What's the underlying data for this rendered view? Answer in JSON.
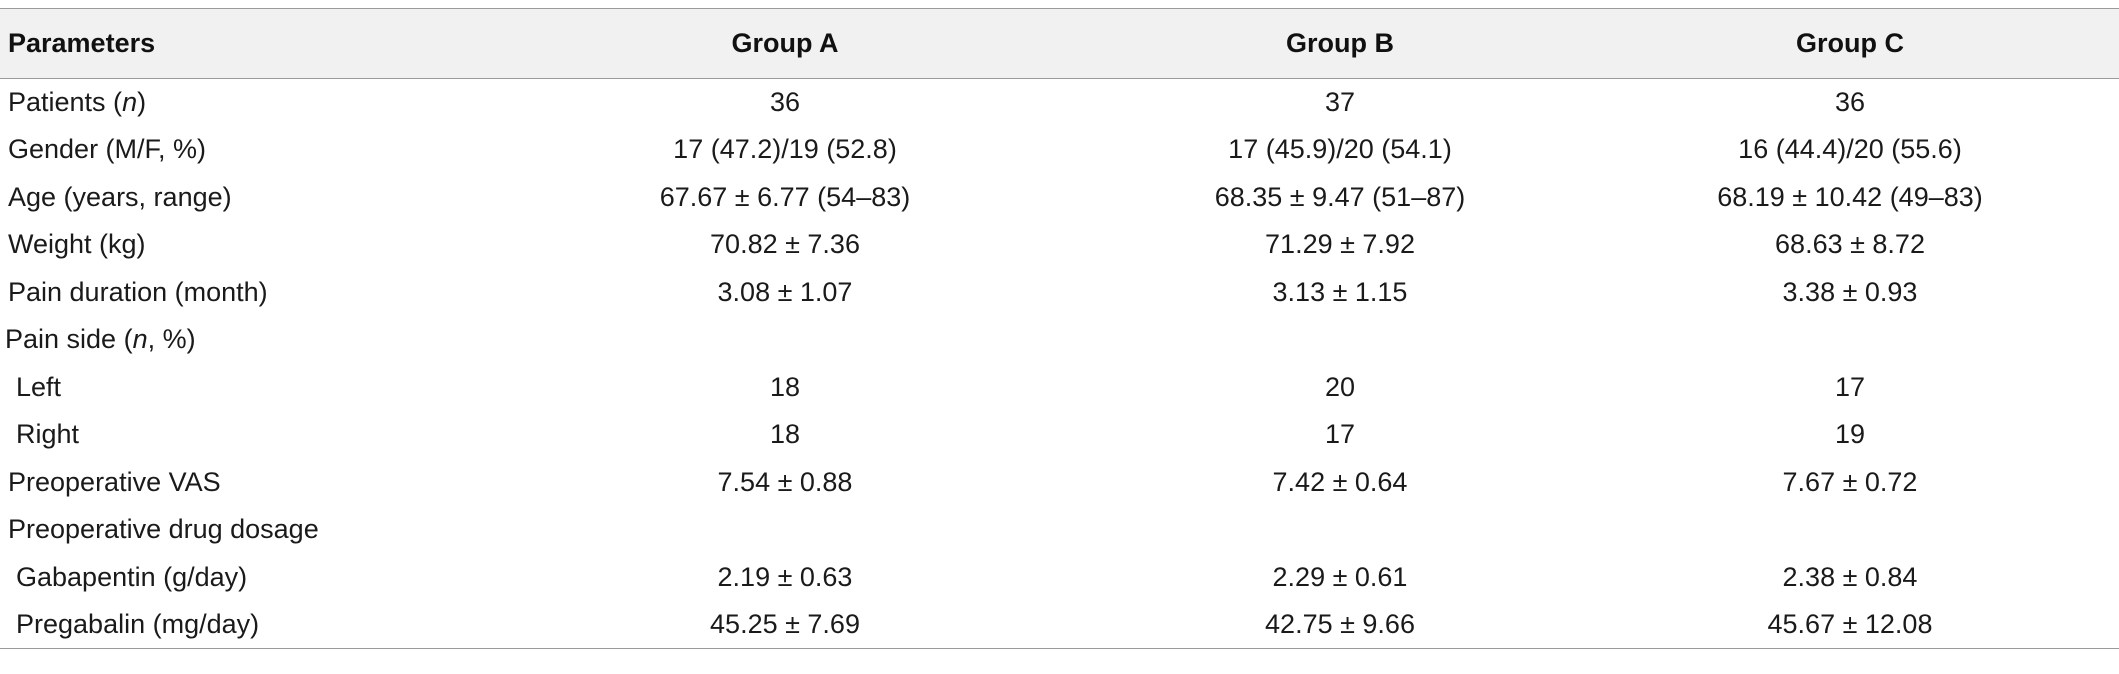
{
  "table": {
    "headers": [
      "Parameters",
      "Group A",
      "Group B",
      "Group C"
    ],
    "rows": [
      {
        "label": "Patients (",
        "label_em": "n",
        "label_tail": ")",
        "a": "36",
        "b": "37",
        "c": "36",
        "indent": "lbl"
      },
      {
        "label": "Gender (M/F, %)",
        "a": "17 (47.2)/19 (52.8)",
        "b": "17 (45.9)/20 (54.1)",
        "c": "16 (44.4)/20 (55.6)",
        "indent": "lbl"
      },
      {
        "label": "Age (years, range)",
        "a": "67.67 ± 6.77 (54–83)",
        "b": "68.35 ± 9.47 (51–87)",
        "c": "68.19 ± 10.42 (49–83)",
        "indent": "lbl"
      },
      {
        "label": "Weight (kg)",
        "a": "70.82 ± 7.36",
        "b": "71.29 ± 7.92",
        "c": "68.63 ± 8.72",
        "indent": "lbl"
      },
      {
        "label": "Pain duration (month)",
        "a": "3.08 ± 1.07",
        "b": "3.13 ± 1.15",
        "c": "3.38 ± 0.93",
        "indent": "lbl"
      },
      {
        "label": "Pain side (",
        "label_em": "n",
        "label_tail": ", %)",
        "a": "",
        "b": "",
        "c": "",
        "indent": "lbl-group"
      },
      {
        "label": "Left",
        "a": "18",
        "b": "20",
        "c": "17",
        "indent": "lbl-sub"
      },
      {
        "label": "Right",
        "a": "18",
        "b": "17",
        "c": "19",
        "indent": "lbl-sub"
      },
      {
        "label": "Preoperative VAS",
        "a": "7.54 ± 0.88",
        "b": "7.42 ± 0.64",
        "c": "7.67 ± 0.72",
        "indent": "lbl"
      },
      {
        "label": "Preoperative drug dosage",
        "a": "",
        "b": "",
        "c": "",
        "indent": "lbl"
      },
      {
        "label": "Gabapentin (g/day)",
        "a": "2.19 ± 0.63",
        "b": "2.29 ± 0.61",
        "c": "2.38 ± 0.84",
        "indent": "lbl-sub"
      },
      {
        "label": "Pregabalin (mg/day)",
        "a": "45.25 ± 7.69",
        "b": "42.75 ± 9.66",
        "c": "45.67 ± 12.08",
        "indent": "lbl-sub"
      }
    ]
  }
}
